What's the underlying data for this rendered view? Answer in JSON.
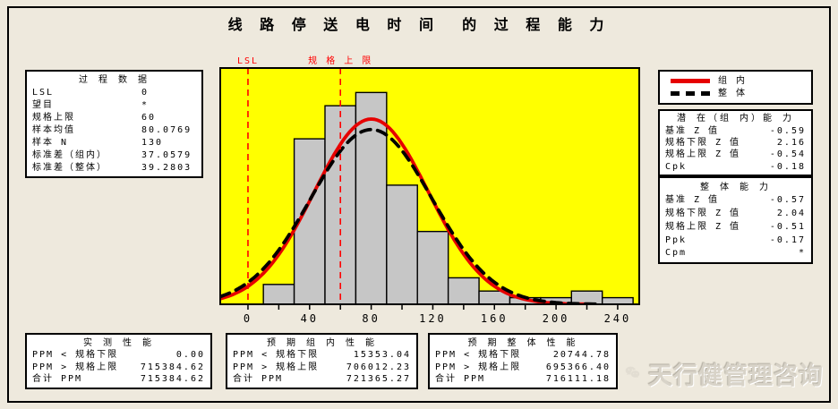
{
  "title": "线 路 停 送 电 时 间  的 过 程 能 力",
  "process_data": {
    "header": "过 程 数 据",
    "rows": [
      {
        "label": "LSL",
        "value": "0"
      },
      {
        "label": "望目",
        "value": "*"
      },
      {
        "label": "规格上限",
        "value": "60"
      },
      {
        "label": "样本均值",
        "value": "80.0769"
      },
      {
        "label": "样本 N",
        "value": "130"
      },
      {
        "label": "标准差（组内）",
        "value": "37.0579"
      },
      {
        "label": "标准差（整体）",
        "value": "39.2803"
      }
    ]
  },
  "legend": {
    "items": [
      {
        "label": "组 内",
        "color": "#E60000",
        "style": "solid"
      },
      {
        "label": "整 体",
        "color": "#000000",
        "style": "dashed"
      }
    ]
  },
  "within_capability": {
    "header": "潜 在（组 内）能 力",
    "rows": [
      {
        "label": "基准 Z 值",
        "value": "-0.59"
      },
      {
        "label": "规格下限 Z 值",
        "value": "2.16"
      },
      {
        "label": "规格上限 Z 值",
        "value": "-0.54"
      },
      {
        "label": "Cpk",
        "value": "-0.18"
      }
    ]
  },
  "overall_capability": {
    "header": "整 体 能 力",
    "rows": [
      {
        "label": "基准 Z 值",
        "value": "-0.57"
      },
      {
        "label": "规格下限 Z 值",
        "value": "2.04"
      },
      {
        "label": "规格上限 Z 值",
        "value": "-0.51"
      },
      {
        "label": "Ppk",
        "value": "-0.17"
      },
      {
        "label": "Cpm",
        "value": "*"
      }
    ]
  },
  "observed_performance": {
    "header": "实 测 性 能",
    "rows": [
      {
        "label": "PPM < 规格下限",
        "value": "0.00"
      },
      {
        "label": "PPM > 规格上限",
        "value": "715384.62"
      },
      {
        "label": "合计 PPM",
        "value": "715384.62"
      }
    ]
  },
  "expected_within_performance": {
    "header": "预 期 组 内 性 能",
    "rows": [
      {
        "label": "PPM < 规格下限",
        "value": "15353.04"
      },
      {
        "label": "PPM > 规格上限",
        "value": "706012.23"
      },
      {
        "label": "合计 PPM",
        "value": "721365.27"
      }
    ]
  },
  "expected_overall_performance": {
    "header": "预 期 整 体 性 能",
    "rows": [
      {
        "label": "PPM < 规格下限",
        "value": "20744.78"
      },
      {
        "label": "PPM > 规格上限",
        "value": "695366.40"
      },
      {
        "label": "合计 PPM",
        "value": "716111.18"
      }
    ]
  },
  "watermark": {
    "text": "天行健管理咨询",
    "icon": "wechat-icon"
  },
  "chart_data": {
    "type": "bar",
    "subtype": "capability-histogram",
    "title": "线路停送电时间 的过程能力",
    "bin_width": 20,
    "categories": [
      20,
      40,
      60,
      80,
      100,
      120,
      140,
      160,
      180,
      200,
      220,
      240
    ],
    "values": [
      3,
      25,
      30,
      32,
      18,
      11,
      4,
      2,
      1,
      1,
      2,
      1
    ],
    "n_total": 130,
    "xlabel": "",
    "ylabel": "",
    "xlim": [
      -18,
      254
    ],
    "ylim_counts": [
      0,
      35.7
    ],
    "x_tick_step_minor": 20,
    "x_tick_labels": [
      "0",
      "40",
      "80",
      "120",
      "160",
      "200",
      "240"
    ],
    "grid": false,
    "legend_position": "top-right",
    "plot_bg": "#FFFF00",
    "bar_fill": "#C6C6C6",
    "bar_stroke": "#000000",
    "spec_lines": [
      {
        "label": "LSL",
        "x": 0,
        "color": "#FF0000"
      },
      {
        "label": "规 格 上 限",
        "x": 60,
        "color": "#FF0000"
      }
    ],
    "curves": [
      {
        "name": "组内",
        "mu": 80.0769,
        "sigma": 37.0579,
        "color": "#E60000",
        "dash": "",
        "width": 3.8,
        "x_end": 223
      },
      {
        "name": "整体",
        "mu": 80.0769,
        "sigma": 39.2803,
        "color": "#000000",
        "dash": "11 8",
        "width": 3.8,
        "x_end": 226
      }
    ]
  }
}
